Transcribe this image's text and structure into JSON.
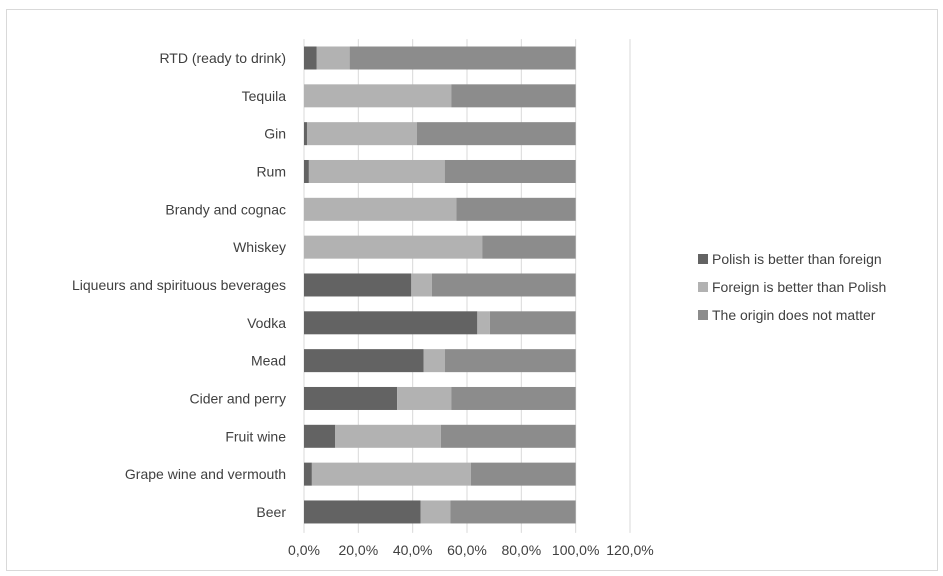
{
  "chart_data": {
    "type": "bar",
    "orientation": "horizontal",
    "stacked": true,
    "percent_stacked": true,
    "categories": [
      "RTD (ready to drink)",
      "Tequila",
      "Gin",
      "Rum",
      "Brandy and cognac",
      "Whiskey",
      "Liqueurs and spirituous beverages",
      "Vodka",
      "Mead",
      "Cider and perry",
      "Fruit wine",
      "Grape wine and vermouth",
      "Beer"
    ],
    "series": [
      {
        "name": "Polish is better than foreign",
        "color": "#636363",
        "values": [
          4.7,
          0.0,
          1.1,
          1.8,
          0.0,
          0.0,
          39.5,
          63.8,
          44.0,
          34.3,
          11.5,
          2.9,
          42.9
        ]
      },
      {
        "name": "Foreign is better than Polish",
        "color": "#b2b2b2",
        "values": [
          12.1,
          54.2,
          40.4,
          50.0,
          56.1,
          65.6,
          7.6,
          4.6,
          7.9,
          19.9,
          38.9,
          58.5,
          11.0
        ]
      },
      {
        "name": "The origin does not matter",
        "color": "#8c8c8c",
        "values": [
          83.2,
          45.8,
          58.5,
          48.2,
          43.9,
          34.4,
          52.9,
          31.6,
          48.1,
          45.8,
          49.6,
          38.6,
          46.1
        ]
      }
    ],
    "xlim": [
      0,
      120
    ],
    "xticks": [
      0,
      20,
      40,
      60,
      80,
      100,
      120
    ],
    "xtick_labels": [
      "0,0%",
      "20,0%",
      "40,0%",
      "60,0%",
      "80,0%",
      "100,0%",
      "120,0%"
    ],
    "grid": "vertical",
    "legend_position": "right",
    "title": "",
    "xlabel": "",
    "ylabel": ""
  }
}
